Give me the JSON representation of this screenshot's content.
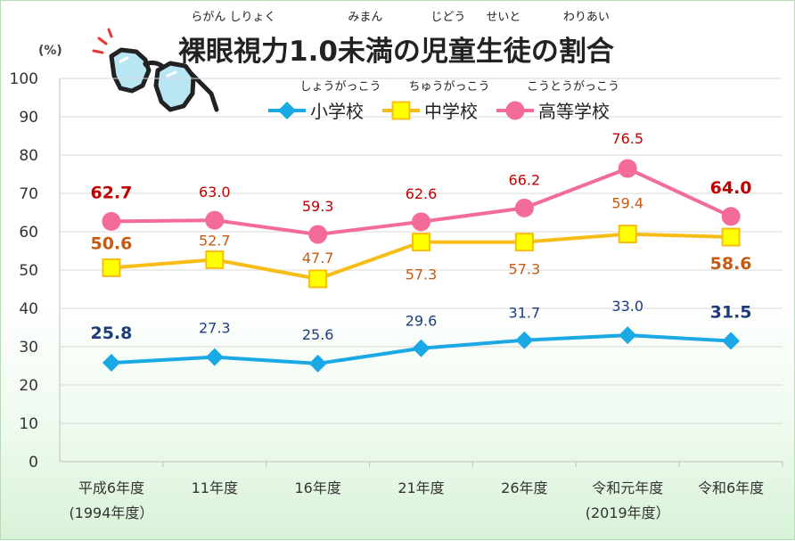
{
  "title": {
    "segments": [
      {
        "text": "裸眼視力",
        "ruby": "らがん しりょく"
      },
      {
        "text": "1.0"
      },
      {
        "text": "未満",
        "ruby": "みまん"
      },
      {
        "text": "の"
      },
      {
        "text": "児童",
        "ruby": "じどう"
      },
      {
        "text": "生徒",
        "ruby": "せいと"
      },
      {
        "text": "の"
      },
      {
        "text": "割合",
        "ruby": "わりあい"
      }
    ]
  },
  "colors": {
    "elementary": "#1ba9e6",
    "junior_high": "#f6bd16",
    "junior_high_marker": "#ffff00",
    "high": "#f26b9b",
    "elementary_label": "#1f3c7a",
    "junior_high_label": "#c55a11",
    "high_label": "#c00000",
    "grid": "#d9d9d9",
    "axis": "#bfbfbf"
  },
  "chart_data": {
    "type": "line",
    "unit": "(%)",
    "ylim": [
      0,
      100
    ],
    "yticks": [
      0,
      10,
      20,
      30,
      40,
      50,
      60,
      70,
      80,
      90,
      100
    ],
    "grid": true,
    "legend_position": "top",
    "categories": [
      {
        "label": "平成6年度",
        "sub": "(1994年度）"
      },
      {
        "label": "11年度",
        "sub": ""
      },
      {
        "label": "16年度",
        "sub": ""
      },
      {
        "label": "21年度",
        "sub": ""
      },
      {
        "label": "26年度",
        "sub": ""
      },
      {
        "label": "令和元年度",
        "sub": "(2019年度）"
      },
      {
        "label": "令和6年度",
        "sub": ""
      }
    ],
    "series": [
      {
        "key": "elementary",
        "name": "小学校",
        "ruby": "しょうがっこう",
        "marker": "diamond",
        "values": [
          25.8,
          27.3,
          25.6,
          29.6,
          31.7,
          33.0,
          31.5
        ],
        "labels": [
          "25.8",
          "27.3",
          "25.6",
          "29.6",
          "31.7",
          "33.0",
          "31.5"
        ]
      },
      {
        "key": "junior_high",
        "name": "中学校",
        "ruby": "ちゅうがっこう",
        "marker": "square",
        "values": [
          50.6,
          52.7,
          47.7,
          57.3,
          57.3,
          59.4,
          58.6
        ],
        "labels": [
          "50.6",
          "52.7",
          "47.7",
          "57.3",
          "57.3",
          "59.4",
          "58.6"
        ]
      },
      {
        "key": "high",
        "name": "高等学校",
        "ruby": "こうとうがっこう",
        "marker": "circle",
        "values": [
          62.7,
          63.0,
          59.3,
          62.6,
          66.2,
          76.5,
          64.0
        ],
        "labels": [
          "62.7",
          "63.0",
          "59.3",
          "62.6",
          "66.2",
          "76.5",
          "64.0"
        ]
      }
    ]
  },
  "illustration": {
    "icon": "sunglasses-icon"
  }
}
